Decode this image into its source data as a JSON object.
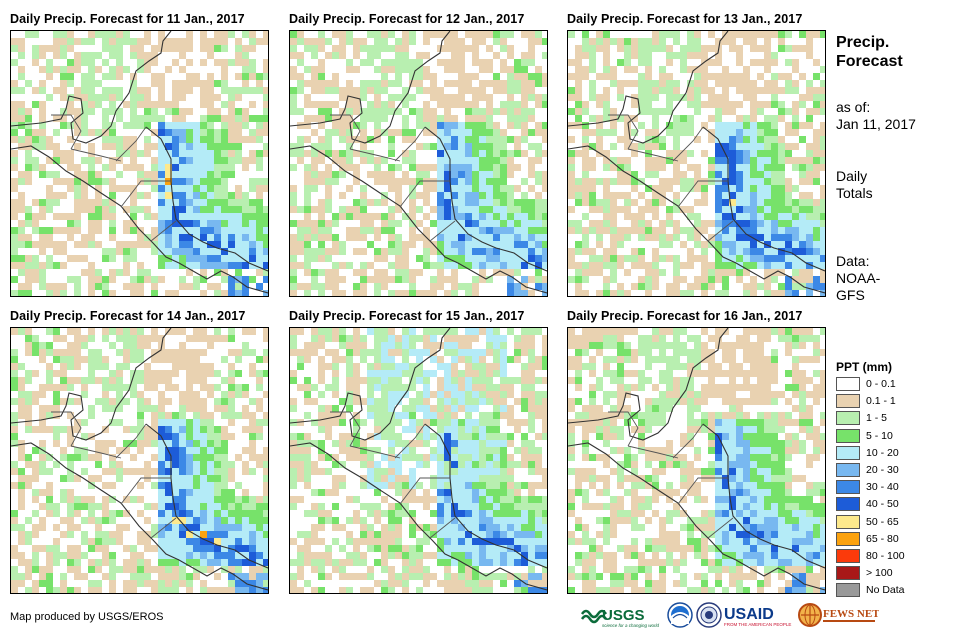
{
  "panels": [
    {
      "title": "Daily Precip. Forecast for 11 Jan., 2017"
    },
    {
      "title": "Daily Precip. Forecast for 12 Jan., 2017"
    },
    {
      "title": "Daily Precip. Forecast for 13 Jan., 2017"
    },
    {
      "title": "Daily Precip. Forecast for 14 Jan., 2017"
    },
    {
      "title": "Daily Precip. Forecast for 15 Jan., 2017"
    },
    {
      "title": "Daily Precip. Forecast for 16 Jan., 2017"
    }
  ],
  "sidebar": {
    "heading_line1": "Precip.",
    "heading_line2": "Forecast",
    "asof_line1": "as of:",
    "asof_line2": "Jan 11, 2017",
    "daily_line1": "Daily",
    "daily_line2": "Totals",
    "data_line1": "Data:",
    "data_line2": "NOAA-",
    "data_line3": "GFS"
  },
  "legend": {
    "title": "PPT (mm)",
    "items": [
      {
        "label": "0 - 0.1",
        "color": "#ffffff"
      },
      {
        "label": "0.1 - 1",
        "color": "#e9d2b1"
      },
      {
        "label": "1 - 5",
        "color": "#b8efb0"
      },
      {
        "label": "5 - 10",
        "color": "#77e26a"
      },
      {
        "label": "10 - 20",
        "color": "#b4ebf7"
      },
      {
        "label": "20 - 30",
        "color": "#78b8f0"
      },
      {
        "label": "30 - 40",
        "color": "#3c88e6"
      },
      {
        "label": "40 - 50",
        "color": "#1d5cd8"
      },
      {
        "label": "50 - 65",
        "color": "#fde98c"
      },
      {
        "label": "65 - 80",
        "color": "#fba20f"
      },
      {
        "label": "80 - 100",
        "color": "#fb3a0b"
      },
      {
        "label": "> 100",
        "color": "#a81818"
      },
      {
        "label": "No Data",
        "color": "#999999"
      }
    ]
  },
  "footer": {
    "credit": "Map produced by USGS/EROS"
  },
  "logos": {
    "usgs": "USGS",
    "usgs_tagline": "science for a changing world",
    "usaid": "USAID",
    "usaid_tagline": "FROM THE AMERICAN PEOPLE",
    "fews": "FEWS NET"
  }
}
